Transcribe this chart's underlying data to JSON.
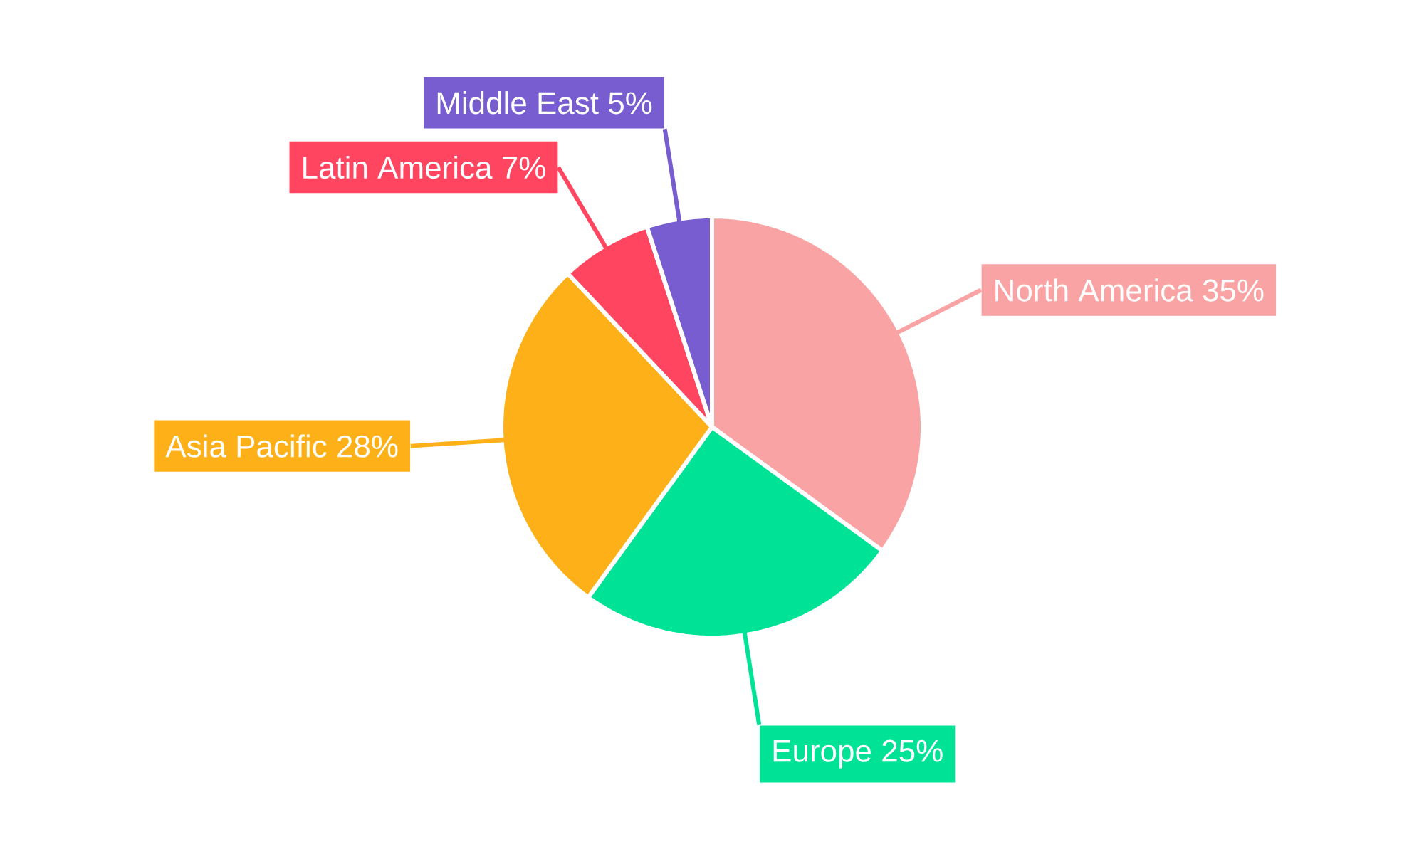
{
  "chart_data": {
    "type": "pie",
    "categories": [
      "North America",
      "Europe",
      "Asia Pacific",
      "Latin America",
      "Middle East"
    ],
    "values": [
      35,
      25,
      28,
      7,
      5
    ],
    "colors": [
      "#f9a3a4",
      "#00e396",
      "#feb019",
      "#ff4560",
      "#775dd0"
    ],
    "value_labels": [
      "35%",
      "25%",
      "28%",
      "7%",
      "5%"
    ]
  }
}
